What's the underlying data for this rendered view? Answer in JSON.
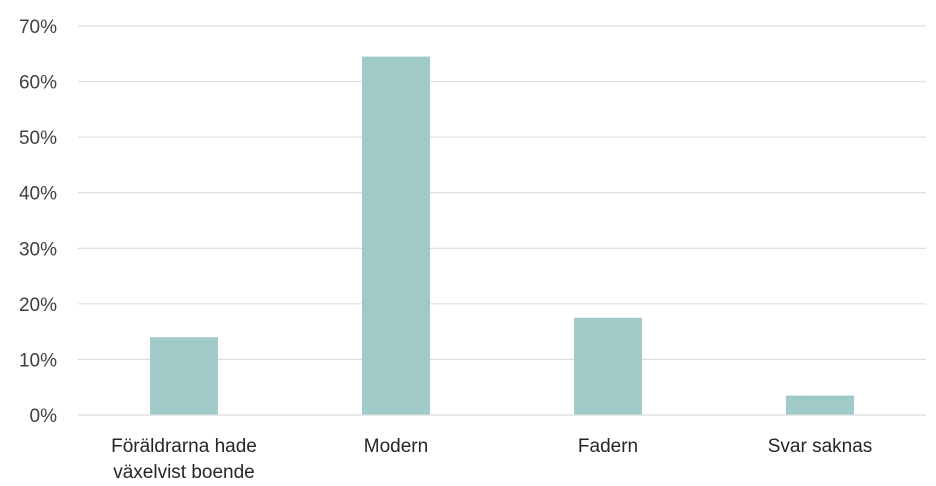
{
  "chart_data": {
    "type": "bar",
    "categories": [
      [
        "Föräldrarna hade",
        "växelvist boende"
      ],
      [
        "Modern"
      ],
      [
        "Fadern"
      ],
      [
        "Svar saknas"
      ]
    ],
    "values": [
      14,
      64.5,
      17.5,
      3.5
    ],
    "ylim": [
      0,
      70
    ],
    "yticks": [
      "0%",
      "10%",
      "20%",
      "30%",
      "40%",
      "50%",
      "60%",
      "70%"
    ],
    "ytick_values": [
      0,
      10,
      20,
      30,
      40,
      50,
      60,
      70
    ],
    "grid": true,
    "bar_color": "#9fcac8",
    "title": "",
    "xlabel": "",
    "ylabel": ""
  }
}
